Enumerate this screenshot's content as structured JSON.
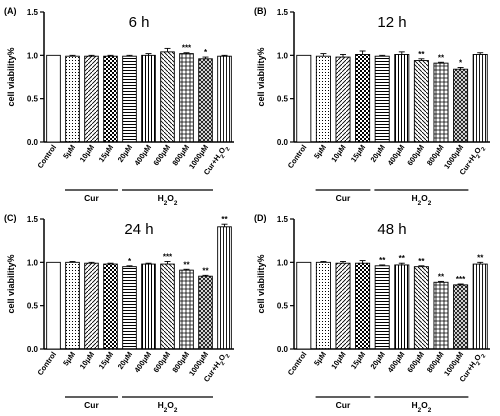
{
  "colors": {
    "ink": "#000000",
    "background": "#ffffff"
  },
  "chart_data": [
    {
      "panel": "(A)",
      "title": "6 h",
      "type": "bar",
      "ylabel": "cell viability%",
      "ylim": [
        0.0,
        1.5
      ],
      "yticks": [
        "0.0",
        "0.5",
        "1.0",
        "1.5"
      ],
      "categories": [
        "Control",
        "5μM",
        "10μM",
        "15μM",
        "20μM",
        "400μM",
        "600μM",
        "800μM",
        "1000μM",
        "Cur+H2O2"
      ],
      "values": [
        1.0,
        0.99,
        0.99,
        0.99,
        0.99,
        1.0,
        1.04,
        1.02,
        0.96,
        0.99
      ],
      "errors": [
        0.0,
        0.01,
        0.01,
        0.01,
        0.01,
        0.02,
        0.04,
        0.01,
        0.02,
        0.01
      ],
      "significance": [
        "",
        "",
        "",
        "",
        "",
        "",
        "",
        "***",
        "*",
        ""
      ],
      "groups": [
        {
          "label": "Cur",
          "from": 1,
          "to": 3
        },
        {
          "label": "H2O2",
          "from": 4,
          "to": 8
        }
      ],
      "grid": false,
      "legend": "none"
    },
    {
      "panel": "(B)",
      "title": "12 h",
      "type": "bar",
      "ylabel": "cell viability%",
      "ylim": [
        0.0,
        1.5
      ],
      "yticks": [
        "0.0",
        "0.5",
        "1.0",
        "1.5"
      ],
      "categories": [
        "Control",
        "5μM",
        "10μM",
        "15μM",
        "20μM",
        "400μM",
        "600μM",
        "800μM",
        "1000μM",
        "Cur+H2O2"
      ],
      "values": [
        1.0,
        0.99,
        0.98,
        1.01,
        0.99,
        1.01,
        0.94,
        0.91,
        0.84,
        1.01
      ],
      "errors": [
        0.0,
        0.03,
        0.03,
        0.04,
        0.01,
        0.03,
        0.02,
        0.01,
        0.02,
        0.02
      ],
      "significance": [
        "",
        "",
        "",
        "",
        "",
        "",
        "**",
        "**",
        "*",
        ""
      ],
      "groups": [
        {
          "label": "Cur",
          "from": 1,
          "to": 3
        },
        {
          "label": "H2O2",
          "from": 4,
          "to": 8
        }
      ],
      "grid": false,
      "legend": "none"
    },
    {
      "panel": "(C)",
      "title": "24 h",
      "type": "bar",
      "ylabel": "cell viability%",
      "ylim": [
        0.0,
        1.5
      ],
      "yticks": [
        "0.0",
        "0.5",
        "1.0",
        "1.5"
      ],
      "categories": [
        "Control",
        "5μM",
        "10μM",
        "15μM",
        "20μM",
        "400μM",
        "600μM",
        "800μM",
        "1000μM",
        "Cur+H2O2"
      ],
      "values": [
        1.0,
        1.0,
        0.99,
        0.98,
        0.95,
        0.98,
        0.98,
        0.91,
        0.84,
        1.41
      ],
      "errors": [
        0.0,
        0.01,
        0.01,
        0.01,
        0.01,
        0.01,
        0.03,
        0.01,
        0.01,
        0.03
      ],
      "significance": [
        "",
        "",
        "",
        "",
        "*",
        "",
        "***",
        "**",
        "**",
        "**"
      ],
      "groups": [
        {
          "label": "Cur",
          "from": 1,
          "to": 3
        },
        {
          "label": "H2O2",
          "from": 4,
          "to": 8
        }
      ],
      "grid": false,
      "legend": "none"
    },
    {
      "panel": "(D)",
      "title": "48 h",
      "type": "bar",
      "ylabel": "cell viability%",
      "ylim": [
        0.0,
        1.5
      ],
      "yticks": [
        "0.0",
        "0.5",
        "1.0",
        "1.5"
      ],
      "categories": [
        "Control",
        "5μM",
        "10μM",
        "15μM",
        "20μM",
        "400μM",
        "600μM",
        "800μM",
        "1000μM",
        "Cur+H2O2"
      ],
      "values": [
        1.0,
        1.0,
        0.99,
        0.99,
        0.96,
        0.97,
        0.95,
        0.77,
        0.74,
        0.98
      ],
      "errors": [
        0.0,
        0.01,
        0.02,
        0.03,
        0.01,
        0.02,
        0.01,
        0.01,
        0.01,
        0.02
      ],
      "significance": [
        "",
        "",
        "",
        "",
        "**",
        "**",
        "**",
        "**",
        "***",
        "**"
      ],
      "groups": [
        {
          "label": "Cur",
          "from": 1,
          "to": 3
        },
        {
          "label": "H2O2",
          "from": 4,
          "to": 8
        }
      ],
      "grid": false,
      "legend": "none"
    }
  ]
}
